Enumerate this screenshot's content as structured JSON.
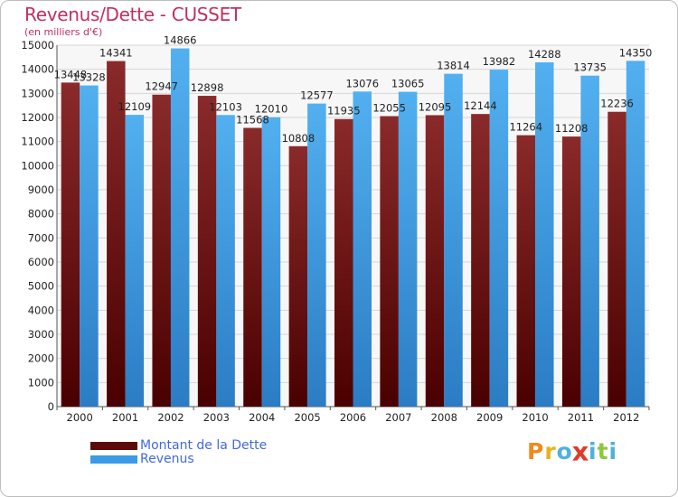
{
  "chart_data": {
    "type": "bar",
    "title": "Revenus/Dette - CUSSET",
    "subtitle": "(en milliers d'€)",
    "categories": [
      "2000",
      "2001",
      "2002",
      "2003",
      "2004",
      "2005",
      "2006",
      "2007",
      "2008",
      "2009",
      "2010",
      "2011",
      "2012"
    ],
    "series": [
      {
        "name": "Montant de la Dette",
        "color": "#7a1a1a",
        "values": [
          13448,
          14341,
          12947,
          12898,
          11568,
          10808,
          11935,
          12055,
          12095,
          12144,
          11264,
          11208,
          12236
        ],
        "labels": [
          "13448",
          "14341",
          "12947",
          "12898",
          "11568",
          "10808",
          "11935",
          "12055",
          "12095",
          "12144",
          "11264",
          "11208",
          "12236"
        ]
      },
      {
        "name": "Revenus",
        "color": "#3c9ae6",
        "values": [
          13328,
          12109,
          14866,
          12103,
          12010,
          12577,
          13076,
          13065,
          13814,
          13982,
          14288,
          13735,
          14350
        ],
        "labels": [
          "13328",
          "12109",
          "14866",
          "12103",
          "12010",
          "12577",
          "13076",
          "13065",
          "13814",
          "13982",
          "14288",
          "13735",
          "14350"
        ]
      }
    ],
    "yticks": [
      "0",
      "1000",
      "2000",
      "3000",
      "4000",
      "5000",
      "6000",
      "7000",
      "8000",
      "9000",
      "10000",
      "11000",
      "12000",
      "13000",
      "14000",
      "15000"
    ],
    "ylim": [
      0,
      15000
    ],
    "grid": true,
    "legend_position": "bottom-left"
  },
  "legend": {
    "items": [
      {
        "label": "Montant de la Dette",
        "color": "#5c0a0a"
      },
      {
        "label": "Revenus",
        "color": "#3c9ae6"
      }
    ]
  },
  "logo": {
    "text": "Proxiti",
    "letters": [
      {
        "ch": "P",
        "color": "#f08a1c"
      },
      {
        "ch": "r",
        "color": "#e8b21c"
      },
      {
        "ch": "o",
        "color": "#4fb0e0"
      },
      {
        "ch": "x",
        "color": "#e23a2a"
      },
      {
        "ch": "i",
        "color": "#4fb0e0"
      },
      {
        "ch": "t",
        "color": "#8dc63f"
      },
      {
        "ch": "i",
        "color": "#4fb0e0"
      }
    ]
  }
}
